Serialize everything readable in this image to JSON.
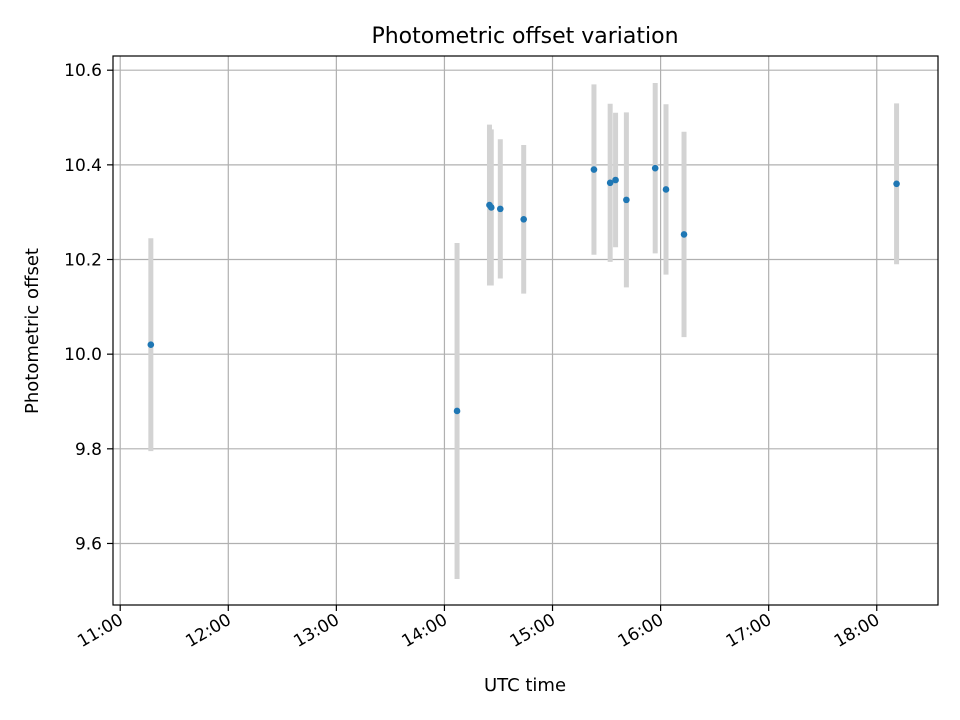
{
  "chart_data": {
    "type": "scatter",
    "title": "Photometric offset variation",
    "xlabel": "UTC time",
    "ylabel": "Photometric offset",
    "x_ticks": [
      "11:00",
      "12:00",
      "13:00",
      "14:00",
      "15:00",
      "16:00",
      "17:00",
      "18:00"
    ],
    "y_ticks": [
      "9.6",
      "9.8",
      "10.0",
      "10.2",
      "10.4",
      "10.6"
    ],
    "xlim": [
      "10:56",
      "18:34"
    ],
    "ylim": [
      9.47,
      10.63
    ],
    "grid": true,
    "point_color": "#1f77b4",
    "errorbar_color": "#d3d3d3",
    "points": [
      {
        "time": "11:17",
        "y": 10.02,
        "err": 0.225
      },
      {
        "time": "14:07",
        "y": 9.88,
        "err": 0.355
      },
      {
        "time": "14:25",
        "y": 10.315,
        "err": 0.17
      },
      {
        "time": "14:26",
        "y": 10.31,
        "err": 0.165
      },
      {
        "time": "14:31",
        "y": 10.307,
        "err": 0.147
      },
      {
        "time": "14:44",
        "y": 10.285,
        "err": 0.157
      },
      {
        "time": "15:23",
        "y": 10.39,
        "err": 0.18
      },
      {
        "time": "15:32",
        "y": 10.362,
        "err": 0.167
      },
      {
        "time": "15:35",
        "y": 10.368,
        "err": 0.142
      },
      {
        "time": "15:41",
        "y": 10.326,
        "err": 0.185
      },
      {
        "time": "15:57",
        "y": 10.393,
        "err": 0.18
      },
      {
        "time": "16:03",
        "y": 10.348,
        "err": 0.18
      },
      {
        "time": "16:13",
        "y": 10.253,
        "err": 0.217
      },
      {
        "time": "18:11",
        "y": 10.36,
        "err": 0.17
      }
    ]
  }
}
